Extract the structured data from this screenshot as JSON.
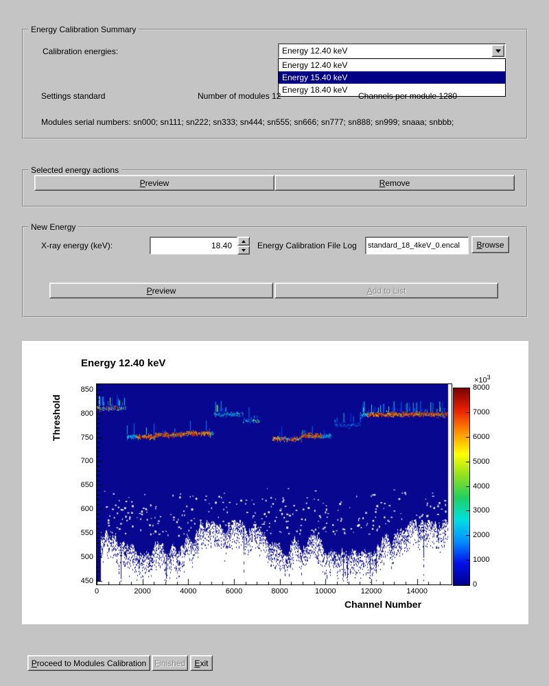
{
  "summary": {
    "title": "Energy Calibration Summary",
    "calibration_energies_label": "Calibration energies:",
    "combobox_value": "Energy 12.40 keV",
    "dropdown": {
      "options": [
        "Energy 12.40 keV",
        "Energy 15.40 keV",
        "Energy 18.40 keV"
      ],
      "highlighted_index": 1
    },
    "settings_label": "Settings standard",
    "modules_count_label": "Number of modules 12",
    "channels_label": "Channels per module 1280",
    "serial_numbers": "Modules serial numbers: sn000; sn111; sn222; sn333; sn444; sn555; sn666; sn777; sn888; sn999; snaaa; snbbb;"
  },
  "selected_energy_actions": {
    "title": "Selected energy actions",
    "preview_label": "Preview",
    "remove_label": "Remove"
  },
  "new_energy": {
    "title": "New Energy",
    "xray_energy_label": "X-ray energy (keV):",
    "xray_energy_value": "18.40",
    "file_log_label": "Energy Calibration File Log",
    "file_log_value": "standard_18_4keV_0.encal",
    "browse_label": "Browse",
    "preview_label": "Preview",
    "add_to_list_label": "Add to List"
  },
  "footer": {
    "proceed_label": "Proceed to Modules Calibration",
    "finished_label": "Finished",
    "exit_label": "Exit"
  },
  "chart_data": {
    "type": "heatmap",
    "title": "Energy 12.40 keV",
    "xlabel": "Channel Number",
    "ylabel": "Threshold",
    "x_range": [
      0,
      15360
    ],
    "y_range": [
      443,
      861
    ],
    "x_ticks": [
      0,
      2000,
      4000,
      6000,
      8000,
      10000,
      12000,
      14000
    ],
    "y_ticks": [
      450,
      500,
      550,
      600,
      650,
      700,
      750,
      800,
      850
    ],
    "background_color": "#07078f",
    "channels_per_module": 1280,
    "colorbar": {
      "ticks": [
        0,
        1000,
        2000,
        3000,
        4000,
        5000,
        6000,
        7000,
        8000
      ],
      "max": 8000,
      "scale_label": "×10",
      "scale_exp": "3",
      "stops": [
        "#00008a",
        "#0010e8",
        "#0090ff",
        "#00e0e0",
        "#20d060",
        "#90e020",
        "#ffff00",
        "#ff9000",
        "#e82000",
        "#7a0000"
      ]
    },
    "palettes": {
      "hot": [
        "#c00000",
        "#e82800",
        "#ff5a00",
        "#ff8c00",
        "#ffc800",
        "#ffe800",
        "#a0e020",
        "#00c8ff"
      ],
      "cool": [
        "#0040f0",
        "#0078ff",
        "#00aaff",
        "#00d8e8",
        "#30e8a0",
        "#98e830"
      ],
      "mixed": [
        "#0078ff",
        "#00d8e8",
        "#ff5a00",
        "#30e8a0",
        "#ffc800",
        "#0040f0",
        "#e82800"
      ],
      "hotcool": [
        "#e82800",
        "#ff5a00",
        "#00aaff",
        "#ffc800",
        "#0040f0",
        "#00d8e8"
      ],
      "sparse": [
        "#0050f0",
        "#0090ff",
        "#00c0ff"
      ]
    },
    "modules": [
      {
        "threshold": 812,
        "palette": "mixed",
        "density": 0.6,
        "whisker": 0.3,
        "f0": 0.0,
        "f1": 1.0
      },
      {
        "threshold": 752,
        "palette": "hot",
        "density": 0.85,
        "whisker": 0.12,
        "f0": 0.03,
        "f1": 1.0,
        "lead_palette": "cool",
        "lead_frac": 0.35
      },
      {
        "threshold": 756,
        "palette": "hot",
        "density": 0.9,
        "whisker": 0.08,
        "f0": 0.0,
        "f1": 1.0
      },
      {
        "threshold": 759,
        "palette": "hot",
        "density": 0.85,
        "whisker": 0.08,
        "f0": 0.0,
        "f1": 1.0,
        "tail_palette": "cool",
        "tail_frac": 0.12
      },
      {
        "threshold": 799,
        "palette": "cool",
        "density": 0.6,
        "whisker": 0.2,
        "f0": 0.0,
        "f1": 1.0
      },
      {
        "threshold": 786,
        "palette": "cool",
        "density": 0.5,
        "whisker": 0.1,
        "f0": 0.0,
        "f1": 0.62
      },
      {
        "threshold": 748,
        "palette": "hotcool",
        "density": 0.8,
        "whisker": 0.08,
        "f0": 0.0,
        "f1": 1.0
      },
      {
        "threshold": 754,
        "palette": "hot",
        "density": 0.85,
        "whisker": 0.08,
        "f0": 0.0,
        "f1": 1.0,
        "tail_palette": "cool",
        "tail_frac": 0.3
      },
      {
        "threshold": 777,
        "palette": "sparse",
        "density": 0.3,
        "whisker": 0.06,
        "f0": 0.1,
        "f1": 1.0
      },
      {
        "threshold": 798,
        "palette": "hot",
        "density": 0.85,
        "whisker": 0.3,
        "f0": 0.0,
        "f1": 1.0,
        "lead_palette": "cool",
        "lead_frac": 0.25
      },
      {
        "threshold": 799,
        "palette": "hot",
        "density": 0.9,
        "whisker": 0.3,
        "f0": 0.0,
        "f1": 1.0
      },
      {
        "threshold": 799,
        "palette": "hot",
        "density": 0.9,
        "whisker": 0.25,
        "f0": 0.0,
        "f1": 0.97
      }
    ]
  }
}
